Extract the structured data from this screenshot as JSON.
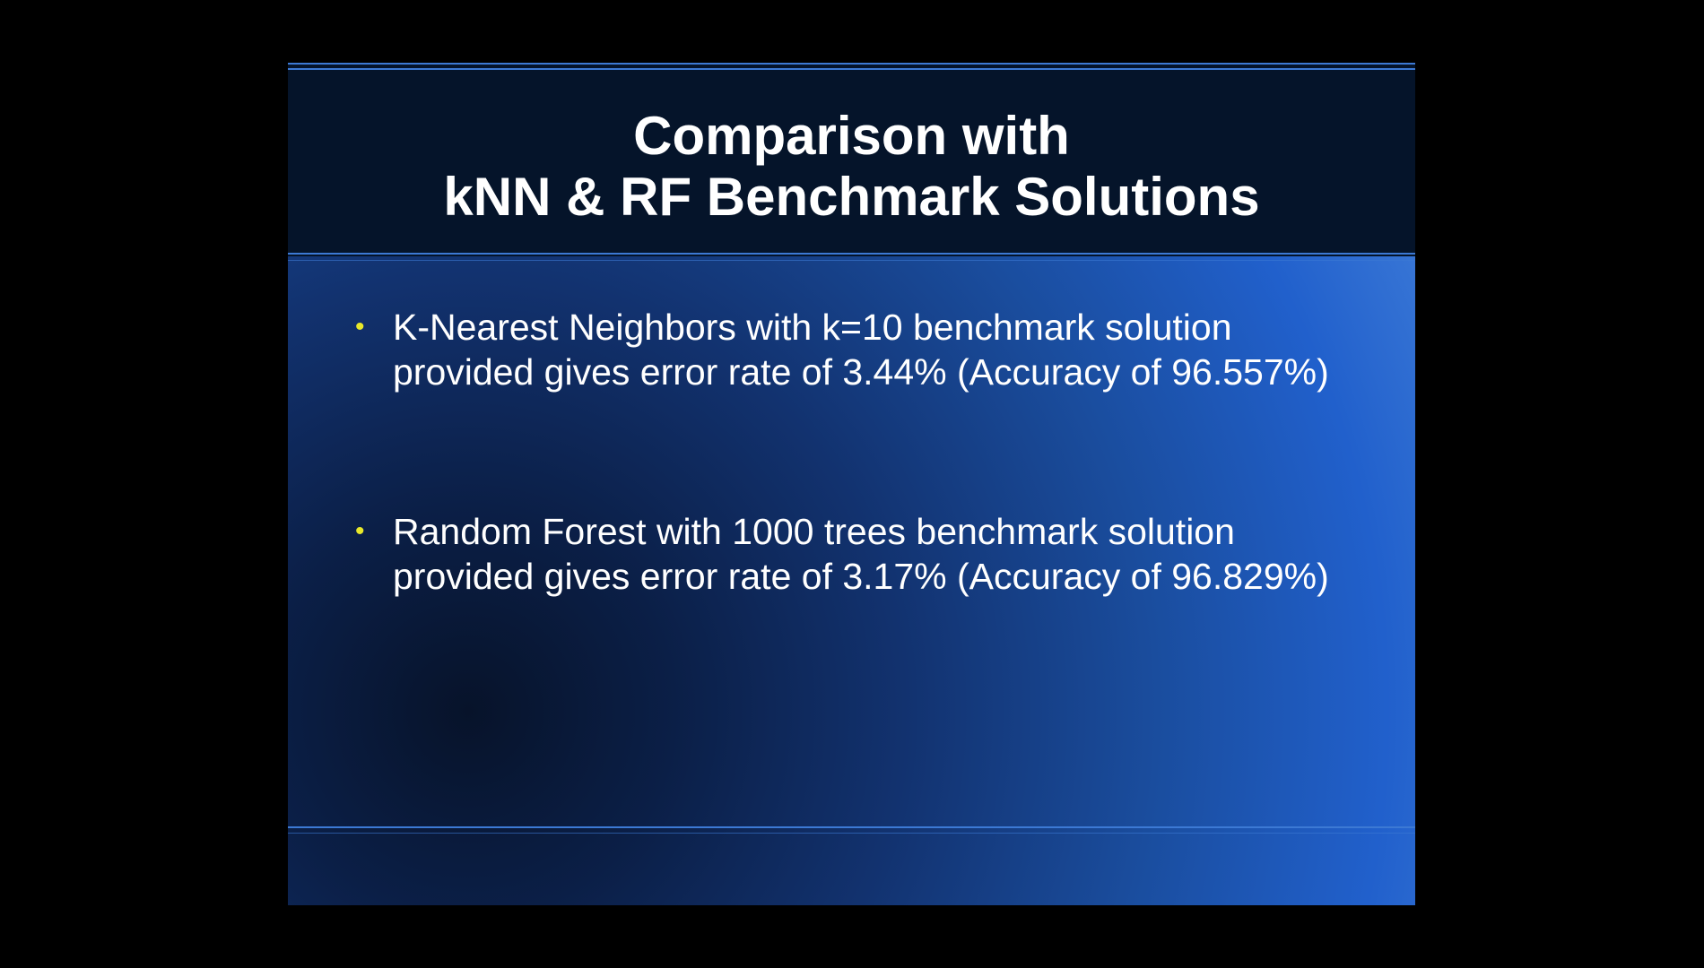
{
  "slide": {
    "title_lines": [
      "Comparison with",
      "kNN & RF Benchmark Solutions"
    ],
    "bullets": [
      {
        "text": "K-Nearest Neighbors with k=10 benchmark solution provided gives error rate of 3.44% (Accuracy of 96.557%)"
      },
      {
        "text": "Random Forest with 1000 trees benchmark solution provided gives error rate of 3.17% (Accuracy of 96.829%)"
      }
    ],
    "bullet_glyph": "•"
  },
  "colors": {
    "page_background": "#000000",
    "title_band": "#05142a",
    "rule_lines": "#3c79d4",
    "bullet_dot": "#e8e82a",
    "text": "#ffffff"
  }
}
